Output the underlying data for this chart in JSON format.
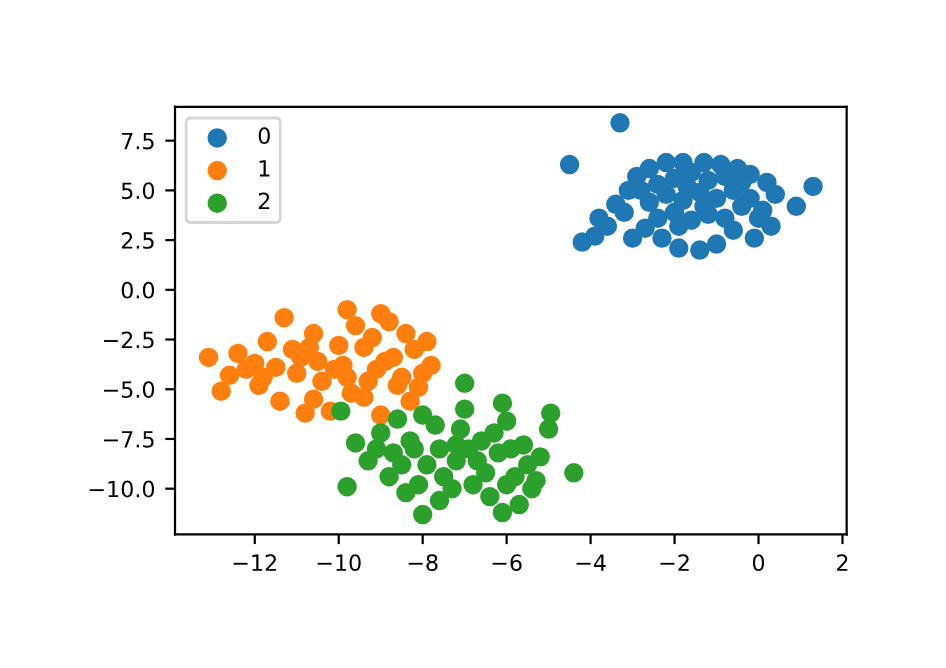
{
  "chart_data": {
    "type": "scatter",
    "xlim": [
      -13.9,
      2.1
    ],
    "ylim": [
      -12.3,
      9.2
    ],
    "xticks": [
      {
        "value": -12,
        "label": "−12"
      },
      {
        "value": -10,
        "label": "−10"
      },
      {
        "value": -8,
        "label": "−8"
      },
      {
        "value": -6,
        "label": "−6"
      },
      {
        "value": -4,
        "label": "−4"
      },
      {
        "value": -2,
        "label": "−2"
      },
      0,
      2
    ],
    "yticks": [
      {
        "value": -10,
        "label": "−10.0"
      },
      {
        "value": -7.5,
        "label": "−7.5"
      },
      {
        "value": -5,
        "label": "−5.0"
      },
      {
        "value": -2.5,
        "label": "−2.5"
      },
      {
        "value": 0,
        "label": "0.0"
      },
      {
        "value": 2.5,
        "label": "2.5"
      },
      {
        "value": 5,
        "label": "5.0"
      },
      {
        "value": 7.5,
        "label": "7.5"
      }
    ],
    "grid": false,
    "legend": "top left",
    "marker": "circle",
    "series": [
      {
        "name": "0",
        "color": "#1f77b4",
        "x": [
          -3.3,
          -4.5,
          1.3,
          0.9,
          -4.2,
          -3.9,
          -3.6,
          -3.8,
          -3.4,
          -3.1,
          -2.9,
          -2.6,
          -2.2,
          -1.8,
          -1.3,
          -0.9,
          -0.5,
          -0.2,
          0.2,
          0.4,
          0.1,
          0.3,
          -0.1,
          -0.6,
          -1.0,
          -1.4,
          -1.9,
          -2.3,
          -2.7,
          -3.0,
          -2.4,
          -2.0,
          -1.6,
          -1.2,
          -0.8,
          -0.4,
          -2.6,
          -2.2,
          -1.8,
          -1.4,
          -1.0,
          -0.6,
          -2.4,
          -2.0,
          -1.6,
          -1.2,
          -0.8,
          -0.4,
          -1.7,
          -1.3,
          -2.8,
          -0.2,
          -1.9,
          0.0,
          -3.2
        ],
        "values": [
          8.4,
          6.3,
          5.2,
          4.2,
          2.4,
          2.7,
          3.2,
          3.6,
          4.3,
          5.0,
          5.7,
          6.1,
          6.4,
          6.4,
          6.4,
          6.3,
          6.1,
          5.8,
          5.4,
          4.8,
          4.0,
          3.2,
          2.6,
          3.0,
          2.3,
          2.0,
          2.1,
          2.6,
          3.1,
          2.6,
          3.6,
          3.9,
          3.5,
          3.8,
          3.6,
          4.2,
          4.4,
          4.8,
          4.5,
          4.9,
          4.6,
          5.0,
          5.3,
          5.6,
          5.9,
          5.5,
          5.7,
          5.4,
          5.2,
          4.2,
          5.0,
          4.6,
          3.2,
          3.6,
          3.9
        ]
      },
      {
        "name": "1",
        "color": "#ff7f0e",
        "x": [
          -13.1,
          -12.8,
          -12.6,
          -12.4,
          -12.0,
          -11.9,
          -11.7,
          -11.4,
          -11.3,
          -11.1,
          -11.0,
          -10.8,
          -10.6,
          -10.5,
          -10.2,
          -10.0,
          -9.8,
          -9.8,
          -9.6,
          -9.4,
          -9.2,
          -9.1,
          -9.0,
          -8.8,
          -8.7,
          -8.6,
          -8.4,
          -8.3,
          -8.2,
          -8.0,
          -7.9,
          -7.8,
          -10.9,
          -10.4,
          -9.9,
          -9.3,
          -10.7,
          -11.5,
          -9.7,
          -8.9,
          -10.1,
          -9.4,
          -11.8,
          -12.2,
          -8.5,
          -10.6,
          -9.0,
          -8.1
        ],
        "values": [
          -3.4,
          -5.1,
          -4.3,
          -3.2,
          -3.7,
          -4.8,
          -2.6,
          -5.6,
          -1.4,
          -3.0,
          -4.2,
          -6.2,
          -2.2,
          -3.6,
          -6.1,
          -2.8,
          -1.0,
          -4.4,
          -1.8,
          -5.4,
          -2.4,
          -4.0,
          -6.3,
          -1.6,
          -3.4,
          -4.8,
          -2.2,
          -5.6,
          -3.0,
          -4.2,
          -2.6,
          -3.8,
          -3.4,
          -4.6,
          -3.8,
          -4.6,
          -2.9,
          -3.9,
          -5.2,
          -3.6,
          -4.0,
          -2.9,
          -4.4,
          -4.0,
          -4.4,
          -5.5,
          -1.2,
          -4.9
        ]
      },
      {
        "name": "2",
        "color": "#2ca02c",
        "x": [
          -9.8,
          -9.6,
          -9.95,
          -8.0,
          -6.1,
          -7.0,
          -4.4,
          -4.95,
          -6.1,
          -5.7,
          -9.3,
          -9.0,
          -8.8,
          -8.6,
          -8.4,
          -8.2,
          -8.0,
          -7.6,
          -7.2,
          -7.0,
          -6.8,
          -6.6,
          -6.4,
          -6.2,
          -6.0,
          -5.8,
          -5.6,
          -5.4,
          -5.2,
          -5.0,
          -8.7,
          -8.3,
          -7.9,
          -7.5,
          -7.1,
          -6.7,
          -6.3,
          -5.9,
          -5.5,
          -8.1,
          -7.7,
          -7.3,
          -6.9,
          -6.5,
          -7.6,
          -8.5,
          -6.0,
          -7.2,
          -9.1,
          -5.3
        ],
        "values": [
          -9.9,
          -7.7,
          -6.1,
          -11.3,
          -5.7,
          -4.7,
          -9.2,
          -6.2,
          -11.2,
          -10.8,
          -8.6,
          -7.2,
          -9.4,
          -6.5,
          -10.2,
          -8.0,
          -6.3,
          -10.6,
          -8.6,
          -6.0,
          -9.8,
          -7.6,
          -10.4,
          -8.2,
          -6.6,
          -9.4,
          -7.8,
          -10.0,
          -8.4,
          -7.0,
          -8.2,
          -7.6,
          -8.8,
          -9.4,
          -7.0,
          -8.6,
          -7.2,
          -8.0,
          -8.8,
          -9.8,
          -6.8,
          -10.0,
          -8.0,
          -9.2,
          -8.0,
          -8.8,
          -9.8,
          -7.8,
          -8.0,
          -9.6
        ]
      }
    ]
  }
}
